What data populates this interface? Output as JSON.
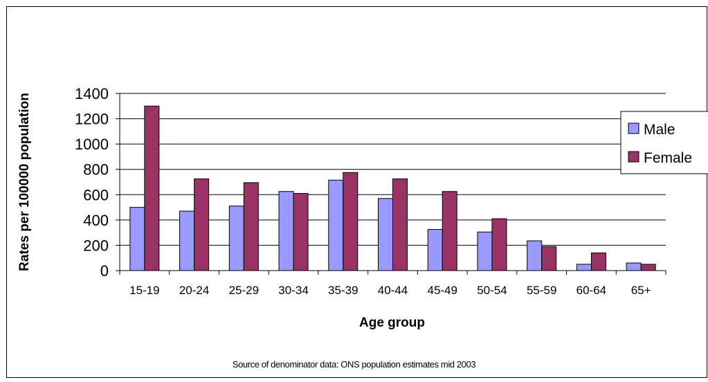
{
  "chart_data": {
    "type": "bar",
    "categories": [
      "15-19",
      "20-24",
      "25-29",
      "30-34",
      "35-39",
      "40-44",
      "45-49",
      "50-54",
      "55-59",
      "60-64",
      "65+"
    ],
    "series": [
      {
        "name": "Male",
        "values": [
          500,
          470,
          510,
          625,
          715,
          570,
          325,
          305,
          235,
          50,
          60
        ]
      },
      {
        "name": "Female",
        "values": [
          1300,
          725,
          695,
          610,
          775,
          725,
          625,
          410,
          190,
          140,
          50
        ]
      }
    ],
    "xlabel": "Age group",
    "ylabel": "Rates per 100000 population",
    "ylim": [
      0,
      1400
    ],
    "yticks": [
      0,
      200,
      400,
      600,
      800,
      1000,
      1200,
      1400
    ],
    "grid": true,
    "legend": "right",
    "colors": {
      "Male": "#9999ff",
      "Female": "#993366"
    }
  },
  "footnote": "Source of denominator data: ONS population estimates mid 2003"
}
